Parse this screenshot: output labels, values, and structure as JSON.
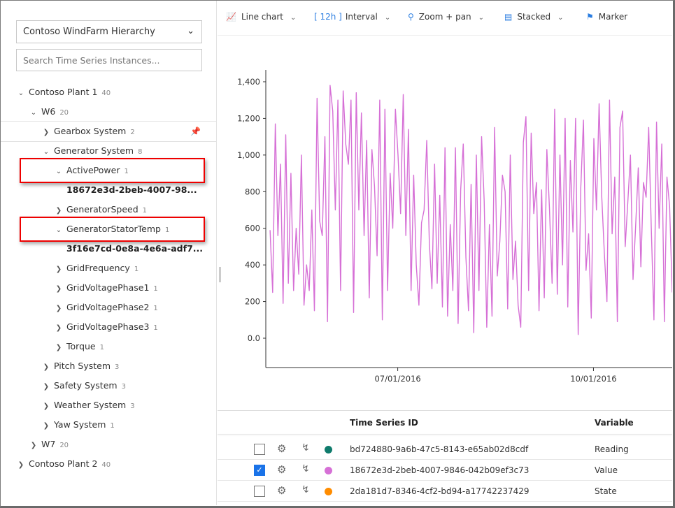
{
  "hierarchy_select": {
    "value": "Contoso WindFarm Hierarchy"
  },
  "search": {
    "placeholder": "Search Time Series Instances..."
  },
  "tree": [
    {
      "label": "Contoso Plant 1",
      "count": "40",
      "expanded": true,
      "level": 0
    },
    {
      "label": "W6",
      "count": "20",
      "expanded": true,
      "level": 1
    },
    {
      "label": "Gearbox System",
      "count": "2",
      "expanded": false,
      "level": 2,
      "pinned": true
    },
    {
      "label": "Generator System",
      "count": "8",
      "expanded": true,
      "level": 2
    },
    {
      "label": "ActivePower",
      "count": "1",
      "expanded": true,
      "level": 3,
      "highlighted": true
    },
    {
      "label": "18672e3d-2beb-4007-98...",
      "count": "",
      "level": 4,
      "instance": true
    },
    {
      "label": "GeneratorSpeed",
      "count": "1",
      "expanded": false,
      "level": 3
    },
    {
      "label": "GeneratorStatorTemp",
      "count": "1",
      "expanded": true,
      "level": 3,
      "highlighted": true
    },
    {
      "label": "3f16e7cd-0e8a-4e6a-adf7...",
      "count": "",
      "level": 4,
      "instance": true
    },
    {
      "label": "GridFrequency",
      "count": "1",
      "expanded": false,
      "level": 3
    },
    {
      "label": "GridVoltagePhase1",
      "count": "1",
      "expanded": false,
      "level": 3
    },
    {
      "label": "GridVoltagePhase2",
      "count": "1",
      "expanded": false,
      "level": 3
    },
    {
      "label": "GridVoltagePhase3",
      "count": "1",
      "expanded": false,
      "level": 3
    },
    {
      "label": "Torque",
      "count": "1",
      "expanded": false,
      "level": 3
    },
    {
      "label": "Pitch System",
      "count": "3",
      "expanded": false,
      "level": 2
    },
    {
      "label": "Safety System",
      "count": "3",
      "expanded": false,
      "level": 2
    },
    {
      "label": "Weather System",
      "count": "3",
      "expanded": false,
      "level": 2
    },
    {
      "label": "Yaw System",
      "count": "1",
      "expanded": false,
      "level": 2
    },
    {
      "label": "W7",
      "count": "20",
      "expanded": false,
      "level": 1
    },
    {
      "label": "Contoso Plant 2",
      "count": "40",
      "expanded": false,
      "level": 0
    }
  ],
  "toolbar": {
    "chart_type": "Line chart",
    "interval_value": "[ 12h ]",
    "interval_label": "Interval",
    "zoom": "Zoom + pan",
    "stacked": "Stacked",
    "marker": "Marker"
  },
  "chart_data": {
    "type": "line",
    "x_range": [
      "2016-04-30",
      "2016-11-07"
    ],
    "x_ticks": [
      "07/01/2016",
      "10/01/2016"
    ],
    "y_ticks": [
      "0.0",
      "200",
      "400",
      "600",
      "800",
      "1,000",
      "1,200",
      "1,400"
    ],
    "ylim": [
      -150,
      1450
    ],
    "color": "#d670d6",
    "series": [
      {
        "x_start": "2016-05-02",
        "x_end": "2016-11-07",
        "values": [
          590,
          250,
          1170,
          560,
          950,
          190,
          1110,
          300,
          900,
          260,
          600,
          350,
          1000,
          180,
          400,
          260,
          700,
          150,
          1310,
          640,
          560,
          1100,
          90,
          1380,
          1240,
          700,
          1300,
          260,
          1350,
          1060,
          950,
          1300,
          140,
          1340,
          700,
          1230,
          560,
          1080,
          220,
          1030,
          830,
          450,
          1300,
          100,
          1250,
          260,
          900,
          600,
          1250,
          1000,
          680,
          1330,
          560,
          1140,
          260,
          890,
          400,
          180,
          630,
          700,
          1080,
          520,
          270,
          950,
          300,
          780,
          170,
          1040,
          120,
          620,
          260,
          1040,
          80,
          810,
          1060,
          440,
          150,
          840,
          30,
          1000,
          260,
          1100,
          750,
          60,
          620,
          120,
          1150,
          340,
          530,
          890,
          800,
          160,
          1000,
          320,
          530,
          180,
          60,
          1070,
          1210,
          260,
          1120,
          680,
          850,
          150,
          810,
          220,
          1030,
          710,
          300,
          1250,
          240,
          1000,
          400,
          1200,
          170,
          970,
          580,
          1200,
          20,
          820,
          1190,
          370,
          570,
          110,
          1090,
          700,
          1280,
          780,
          470,
          200,
          1300,
          570,
          880,
          90,
          1150,
          1240,
          500,
          740,
          1000,
          320,
          610,
          930,
          390,
          850,
          770,
          1150,
          600,
          100,
          1180,
          600,
          1060,
          90,
          880,
          720,
          250
        ]
      }
    ]
  },
  "table": {
    "headers": {
      "id": "Time Series ID",
      "variable": "Variable"
    },
    "rows": [
      {
        "checked": false,
        "color": "#0f7b6c",
        "id": "bd724880-9a6b-47c5-8143-e65ab02d8cdf",
        "variable": "Reading"
      },
      {
        "checked": true,
        "color": "#d670d6",
        "id": "18672e3d-2beb-4007-9846-042b09ef3c73",
        "variable": "Value"
      },
      {
        "checked": false,
        "color": "#ff8c00",
        "id": "2da181d7-8346-4cf2-bd94-a17742237429",
        "variable": "State"
      }
    ]
  }
}
